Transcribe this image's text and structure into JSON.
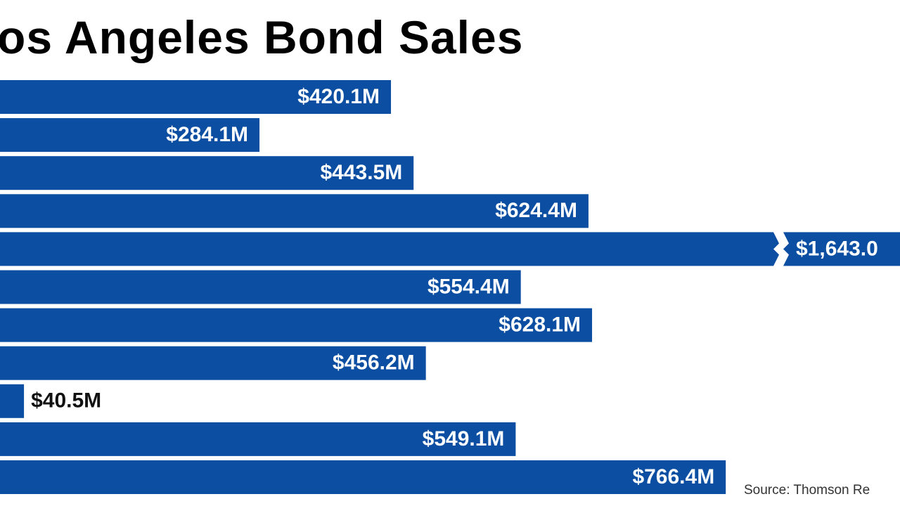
{
  "chart_data": {
    "type": "bar",
    "orientation": "horizontal",
    "title": "os Angeles Bond Sales",
    "categories": [
      null,
      null,
      null,
      null,
      null,
      null,
      null,
      null,
      null,
      null,
      null
    ],
    "values": [
      420.1,
      284.1,
      443.5,
      624.4,
      1643.0,
      554.4,
      628.1,
      456.2,
      40.5,
      549.1,
      766.4
    ],
    "value_labels": [
      "$420.1M",
      "$284.1M",
      "$443.5M",
      "$624.4M",
      "$1,643.0",
      "$554.4M",
      "$628.1M",
      "$456.2M",
      "$40.5M",
      "$549.1M",
      "$766.4M"
    ],
    "color": "#0b4ea2",
    "source": "Source: Thomson Re"
  }
}
